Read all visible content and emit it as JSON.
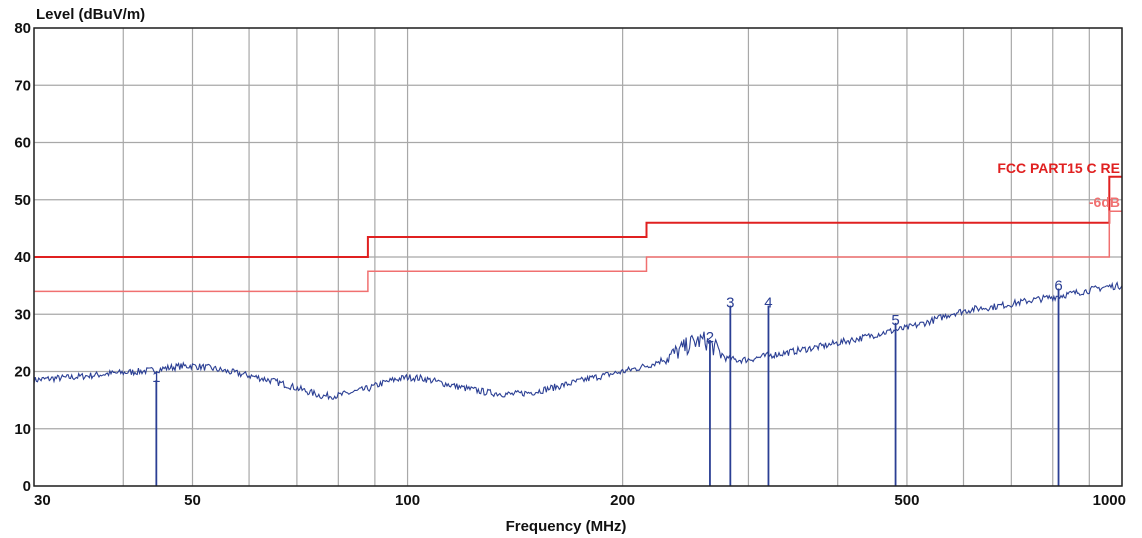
{
  "chart_data": {
    "type": "line",
    "ylabel": "Level (dBuV/m)",
    "xlabel": "Frequency (MHz)",
    "xscale": "log",
    "xlim": [
      30,
      1000
    ],
    "ylim": [
      0,
      80
    ],
    "grid": true,
    "x_ticks": [
      {
        "value": 30,
        "label": "30"
      },
      {
        "value": 50,
        "label": "50"
      },
      {
        "value": 100,
        "label": "100"
      },
      {
        "value": 200,
        "label": "200"
      },
      {
        "value": 500,
        "label": "500"
      },
      {
        "value": 1000,
        "label": "1000"
      }
    ],
    "x_grid": [
      30,
      40,
      50,
      60,
      70,
      80,
      90,
      100,
      200,
      300,
      400,
      500,
      600,
      700,
      800,
      900,
      1000
    ],
    "y_ticks": [
      0,
      10,
      20,
      30,
      40,
      50,
      60,
      70,
      80
    ],
    "limit_lines": [
      {
        "name": "FCC PART15 C RE",
        "color": "#e02020",
        "points": [
          [
            30,
            40
          ],
          [
            88,
            40
          ],
          [
            88,
            43.5
          ],
          [
            216,
            43.5
          ],
          [
            216,
            46
          ],
          [
            960,
            46
          ],
          [
            960,
            54
          ],
          [
            1000,
            54
          ]
        ]
      },
      {
        "name": "-6dB",
        "color": "#f07070",
        "points": [
          [
            30,
            34
          ],
          [
            88,
            34
          ],
          [
            88,
            37.5
          ],
          [
            216,
            37.5
          ],
          [
            216,
            40
          ],
          [
            960,
            40
          ],
          [
            960,
            48
          ],
          [
            1000,
            48
          ]
        ]
      }
    ],
    "series": [
      {
        "color": "#2b3f94",
        "x": [
          30,
          32,
          34,
          36,
          38,
          40,
          42,
          44,
          46,
          48,
          50,
          53,
          56,
          60,
          64,
          68,
          72,
          76,
          80,
          84,
          88,
          92,
          96,
          100,
          105,
          110,
          120,
          130,
          140,
          150,
          160,
          170,
          180,
          190,
          200,
          210,
          220,
          230,
          240,
          250,
          260,
          270,
          280,
          290,
          300,
          320,
          340,
          360,
          380,
          400,
          430,
          460,
          500,
          540,
          580,
          620,
          660,
          700,
          750,
          800,
          850,
          900,
          950,
          1000
        ],
        "y": [
          18.5,
          18.8,
          19.0,
          19.3,
          19.6,
          19.8,
          20.0,
          20.2,
          20.6,
          20.9,
          21.0,
          20.6,
          20.0,
          19.3,
          18.5,
          17.6,
          16.6,
          15.7,
          15.8,
          16.4,
          17.0,
          17.9,
          18.6,
          19.0,
          18.8,
          18.2,
          17.1,
          16.3,
          16.0,
          16.4,
          17.2,
          18.0,
          18.8,
          19.4,
          20.0,
          20.6,
          21.3,
          22.3,
          23.6,
          25.0,
          25.5,
          24.0,
          22.2,
          22.0,
          22.1,
          22.8,
          23.3,
          23.9,
          24.4,
          25.0,
          25.8,
          26.7,
          27.6,
          28.8,
          30.2,
          30.9,
          31.3,
          31.8,
          32.5,
          33.0,
          33.6,
          34.2,
          34.8,
          35.0
        ]
      }
    ],
    "markers": [
      {
        "label": "1",
        "x": 44.5,
        "y": 18.5
      },
      {
        "label": "2",
        "x": 265,
        "y": 25.5
      },
      {
        "label": "3",
        "x": 283,
        "y": 31.5
      },
      {
        "label": "4",
        "x": 320,
        "y": 31.5
      },
      {
        "label": "5",
        "x": 482,
        "y": 28.5
      },
      {
        "label": "6",
        "x": 815,
        "y": 34.5
      }
    ],
    "colors": {
      "grid": "#a8a8a8",
      "frame": "#222222",
      "limit_label": "#e02020",
      "margin_label": "#f07070"
    }
  }
}
